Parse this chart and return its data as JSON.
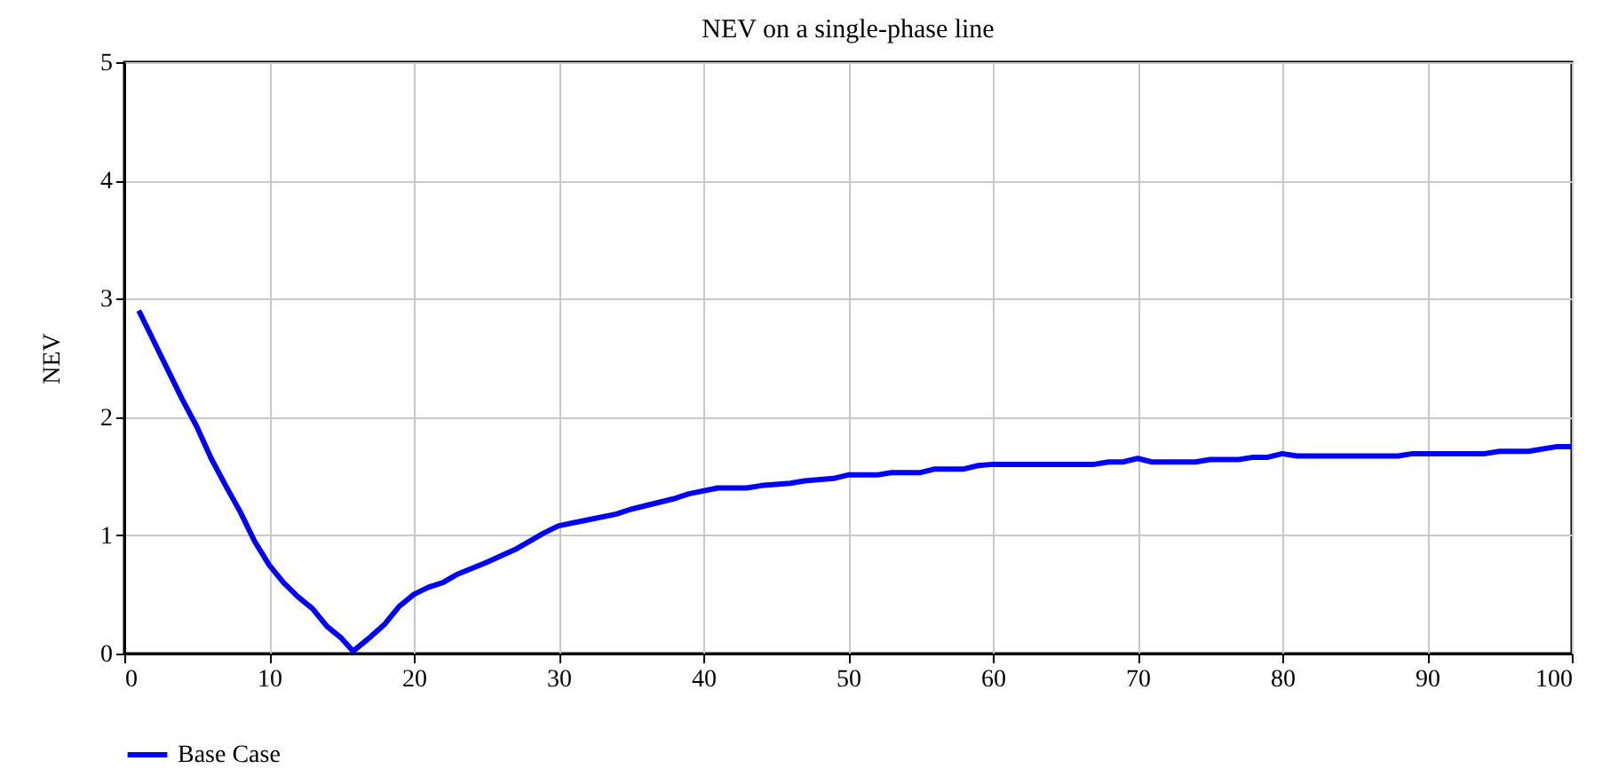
{
  "chart_data": {
    "type": "line",
    "title": "NEV on a single-phase line",
    "ylabel": "NEV",
    "x": [
      1,
      2,
      3,
      4,
      5,
      6,
      7,
      8,
      9,
      10,
      11,
      12,
      13,
      14,
      15,
      15.8,
      17,
      18,
      19,
      20,
      21,
      22,
      23,
      25,
      27,
      29,
      30,
      32,
      34,
      35,
      37,
      38,
      39,
      41,
      43,
      44,
      46,
      47,
      49,
      50,
      52,
      53,
      55,
      56,
      58,
      59,
      60,
      67,
      68,
      69,
      70,
      71,
      74,
      75,
      77,
      78,
      79,
      80,
      81,
      88,
      89,
      94,
      95,
      97,
      99,
      100
    ],
    "series": [
      {
        "name": "Base Case",
        "color": "#0000ff",
        "values": [
          2.9,
          2.65,
          2.4,
          2.15,
          1.92,
          1.65,
          1.42,
          1.2,
          0.95,
          0.75,
          0.6,
          0.48,
          0.38,
          0.23,
          0.13,
          0.02,
          0.14,
          0.25,
          0.4,
          0.5,
          0.56,
          0.6,
          0.67,
          0.77,
          0.88,
          1.02,
          1.08,
          1.13,
          1.18,
          1.22,
          1.28,
          1.31,
          1.35,
          1.4,
          1.4,
          1.42,
          1.44,
          1.46,
          1.48,
          1.51,
          1.51,
          1.53,
          1.53,
          1.56,
          1.56,
          1.59,
          1.6,
          1.6,
          1.62,
          1.62,
          1.65,
          1.62,
          1.62,
          1.64,
          1.64,
          1.66,
          1.66,
          1.69,
          1.67,
          1.67,
          1.69,
          1.69,
          1.71,
          1.71,
          1.75,
          1.75
        ]
      }
    ],
    "xlim": [
      0,
      100
    ],
    "xticks": [
      0,
      10,
      20,
      30,
      40,
      50,
      60,
      70,
      80,
      90,
      100
    ],
    "ylim": [
      0,
      5
    ],
    "yticks": [
      0,
      1,
      2,
      3,
      4,
      5
    ],
    "grid": true,
    "legend": "bottom left",
    "line_style": "solid",
    "marker": "none"
  }
}
